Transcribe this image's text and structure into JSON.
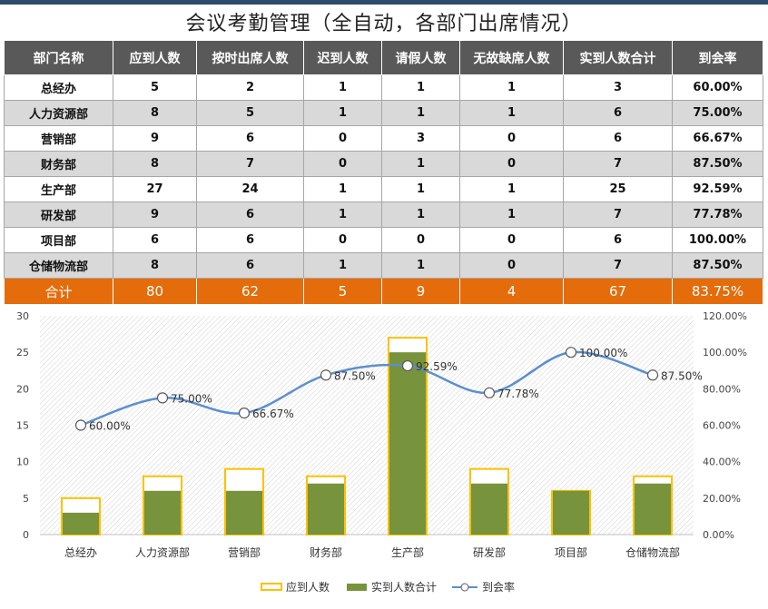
{
  "title": "会议考勤管理（全自动，各部门出席情况）",
  "table": {
    "headers": [
      "部门名称",
      "应到人数",
      "按时出席人数",
      "迟到人数",
      "请假人数",
      "无故缺席人数",
      "实到人数合计",
      "到会率"
    ],
    "rows": [
      [
        "总经办",
        "5",
        "2",
        "1",
        "1",
        "1",
        "3",
        "60.00%"
      ],
      [
        "人力资源部",
        "8",
        "5",
        "1",
        "1",
        "1",
        "6",
        "75.00%"
      ],
      [
        "营销部",
        "9",
        "6",
        "0",
        "3",
        "0",
        "6",
        "66.67%"
      ],
      [
        "财务部",
        "8",
        "7",
        "0",
        "1",
        "0",
        "7",
        "87.50%"
      ],
      [
        "生产部",
        "27",
        "24",
        "1",
        "1",
        "1",
        "25",
        "92.59%"
      ],
      [
        "研发部",
        "9",
        "6",
        "1",
        "1",
        "1",
        "7",
        "77.78%"
      ],
      [
        "项目部",
        "6",
        "6",
        "0",
        "0",
        "0",
        "6",
        "100.00%"
      ],
      [
        "仓储物流部",
        "8",
        "6",
        "1",
        "1",
        "0",
        "7",
        "87.50%"
      ]
    ],
    "total": [
      "合计",
      "80",
      "62",
      "5",
      "9",
      "4",
      "67",
      "83.75%"
    ]
  },
  "chart_data": {
    "type": "bar",
    "categories": [
      "总经办",
      "人力资源部",
      "营销部",
      "财务部",
      "生产部",
      "研发部",
      "项目部",
      "仓储物流部"
    ],
    "series": [
      {
        "name": "应到人数",
        "type": "bar",
        "axis": "left",
        "values": [
          5,
          8,
          9,
          8,
          27,
          9,
          6,
          8
        ],
        "color": "#ffc000"
      },
      {
        "name": "实到人数合计",
        "type": "bar",
        "axis": "left",
        "values": [
          3,
          6,
          6,
          7,
          25,
          7,
          6,
          7
        ],
        "color": "#77933c"
      },
      {
        "name": "到会率",
        "type": "line",
        "axis": "right",
        "values": [
          60.0,
          75.0,
          66.67,
          87.5,
          92.59,
          77.78,
          100.0,
          87.5
        ],
        "labels": [
          "60.00%",
          "75.00%",
          "66.67%",
          "87.50%",
          "92.59%",
          "77.78%",
          "100.00%",
          "87.50%"
        ],
        "color": "#5b8fd0"
      }
    ],
    "y_left": {
      "min": 0,
      "max": 30,
      "ticks": [
        "0",
        "5",
        "10",
        "15",
        "20",
        "25",
        "30"
      ]
    },
    "y_right": {
      "min": 0,
      "max": 120,
      "ticks": [
        "0.00%",
        "20.00%",
        "40.00%",
        "60.00%",
        "80.00%",
        "100.00%",
        "120.00%"
      ]
    },
    "legend_position": "bottom"
  }
}
